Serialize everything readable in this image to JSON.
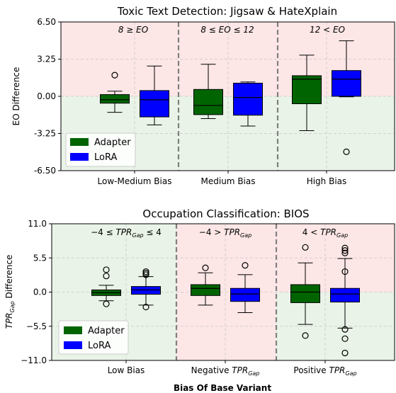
{
  "xlabel": "Bias Of Base Variant",
  "legend": [
    {
      "name": "Adapter",
      "color": "#006400"
    },
    {
      "name": "LoRA",
      "color": "#0000ff"
    }
  ],
  "colors": {
    "pink": "#fde6e6",
    "green": "#e9f3e7",
    "divider": "#808080",
    "grid": "#c8c8c8"
  },
  "chart_data": [
    {
      "type": "box",
      "title": "Toxic Text Detection: Jigsaw & HateXplain",
      "ylabel": "EO Difference",
      "ylim": [
        -6.5,
        6.5
      ],
      "yticks": [
        "6.50",
        "3.25",
        "0.00",
        "-3.25",
        "-6.50"
      ],
      "ytick_values": [
        6.5,
        3.25,
        0,
        -3.25,
        -6.5
      ],
      "grid": true,
      "legend_position": "lower-left",
      "categories": [
        "Low-Medium Bias",
        "Medium Bias",
        "High Bias"
      ],
      "region_labels": [
        "8 ≥ EO",
        "8 ≤ EO ≤ 12",
        "12 < EO"
      ],
      "series": [
        {
          "name": "Adapter",
          "boxes": [
            {
              "whislo": -1.4,
              "q1": -0.6,
              "med": -0.3,
              "q3": 0.15,
              "whishi": 0.45,
              "fliers": [
                1.85
              ]
            },
            {
              "whislo": -1.95,
              "q1": -1.6,
              "med": -0.8,
              "q3": 0.6,
              "whishi": 2.8,
              "fliers": []
            },
            {
              "whislo": -3.0,
              "q1": -0.65,
              "med": 1.5,
              "q3": 1.8,
              "whishi": 3.6,
              "fliers": []
            }
          ]
        },
        {
          "name": "LoRA",
          "boxes": [
            {
              "whislo": -2.5,
              "q1": -1.8,
              "med": -0.3,
              "q3": 0.5,
              "whishi": 2.65,
              "fliers": []
            },
            {
              "whislo": -2.6,
              "q1": -1.65,
              "med": -0.1,
              "q3": 1.15,
              "whishi": 1.25,
              "fliers": []
            },
            {
              "whislo": -0.05,
              "q1": 0.0,
              "med": 1.5,
              "q3": 2.25,
              "whishi": 4.85,
              "fliers": [
                -4.85
              ]
            }
          ]
        }
      ]
    },
    {
      "type": "box",
      "title": "Occupation Classification: BIOS",
      "ylim": [
        -11.0,
        11.0
      ],
      "yticks": [
        "11.0",
        "5.5",
        "0.0",
        "−5.5",
        "−11.0"
      ],
      "ytick_values": [
        11,
        5.5,
        0,
        -5.5,
        -11
      ],
      "grid": true,
      "legend_position": "lower-left",
      "series": [
        {
          "name": "Adapter",
          "boxes": [
            {
              "whislo": -1.4,
              "q1": -0.55,
              "med": -0.1,
              "q3": 0.35,
              "whishi": 1.1,
              "fliers": [
                3.6,
                2.6,
                -1.9
              ]
            },
            {
              "whislo": -2.1,
              "q1": -0.55,
              "med": 0.6,
              "q3": 1.2,
              "whishi": 3.1,
              "fliers": [
                3.9
              ]
            },
            {
              "whislo": -5.2,
              "q1": -1.7,
              "med": 0.0,
              "q3": 1.2,
              "whishi": 4.7,
              "fliers": [
                7.2,
                -7.0
              ]
            }
          ]
        },
        {
          "name": "LoRA",
          "boxes": [
            {
              "whislo": -2.1,
              "q1": -0.35,
              "med": 0.35,
              "q3": 0.9,
              "whishi": 2.5,
              "fliers": [
                3.3,
                3.05,
                2.8,
                -2.4
              ]
            },
            {
              "whislo": -3.3,
              "q1": -1.5,
              "med": -0.3,
              "q3": 0.6,
              "whishi": 2.8,
              "fliers": [
                4.3
              ]
            },
            {
              "whislo": -5.8,
              "q1": -1.6,
              "med": -0.3,
              "q3": 0.6,
              "whishi": 5.4,
              "fliers": [
                7.1,
                6.7,
                6.3,
                3.3,
                -6.0,
                -7.5,
                -9.8
              ]
            }
          ]
        }
      ]
    }
  ],
  "bottom": {
    "ylabel_parts": [
      "TPR",
      "Gap",
      " Difference"
    ],
    "tick_low": "Low Bias",
    "tick_neg": "Negative ",
    "tick_pos": "Positive ",
    "tpr": "TPR",
    "gap": "Gap",
    "r1a": "−4 ≤ ",
    "r1b": " ≤ 4",
    "r2a": "−4 > ",
    "r3a": "4 < "
  }
}
